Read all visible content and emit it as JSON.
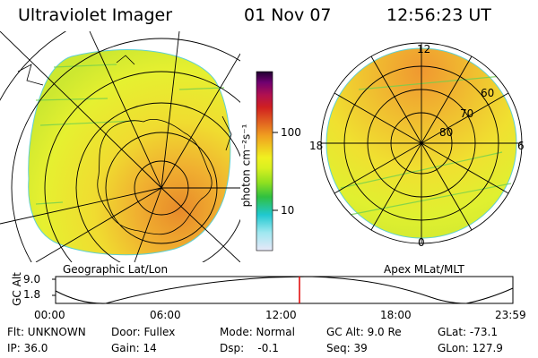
{
  "header": {
    "title": "Ultraviolet Imager",
    "date": "01 Nov 07",
    "time": "12:56:23 UT"
  },
  "colorbar": {
    "label": "photon cm⁻²s⁻¹",
    "tick_100": "100",
    "tick_10": "10",
    "scale": "log",
    "colors": [
      "#e0e0f8",
      "#80e0f0",
      "#20c8d0",
      "#40c040",
      "#80e020",
      "#c0f020",
      "#f0f020",
      "#f0c020",
      "#f0a020",
      "#e06020",
      "#d02020",
      "#b01050",
      "#700070",
      "#300030"
    ]
  },
  "left_map": {
    "caption": "Geographic Lat/Lon"
  },
  "right_map": {
    "caption": "Apex MLat/MLT",
    "mlt_labels": {
      "top": "12",
      "left": "18",
      "right": "6",
      "bottom": "0"
    },
    "lat_labels": [
      "60",
      "70",
      "80"
    ]
  },
  "altitude_plot": {
    "ylabel": "GC Alt",
    "y_ticks": [
      "9.0",
      "1.8"
    ],
    "x_ticks": [
      "00:00",
      "06:00",
      "12:00",
      "18:00",
      "23:59"
    ],
    "marker_color": "#e00000"
  },
  "footer": {
    "flt": "Flt: UNKNOWN",
    "ip": "IP: 36.0",
    "door": "Door: Fullex",
    "gain": "Gain: 14",
    "mode": "Mode: Normal",
    "dsp": "Dsp:    -0.1",
    "gcalt": "GC Alt: 9.0 Re",
    "seq": "Seq: 39",
    "glat": "GLat: -73.1",
    "glon": "GLon: 127.9"
  }
}
